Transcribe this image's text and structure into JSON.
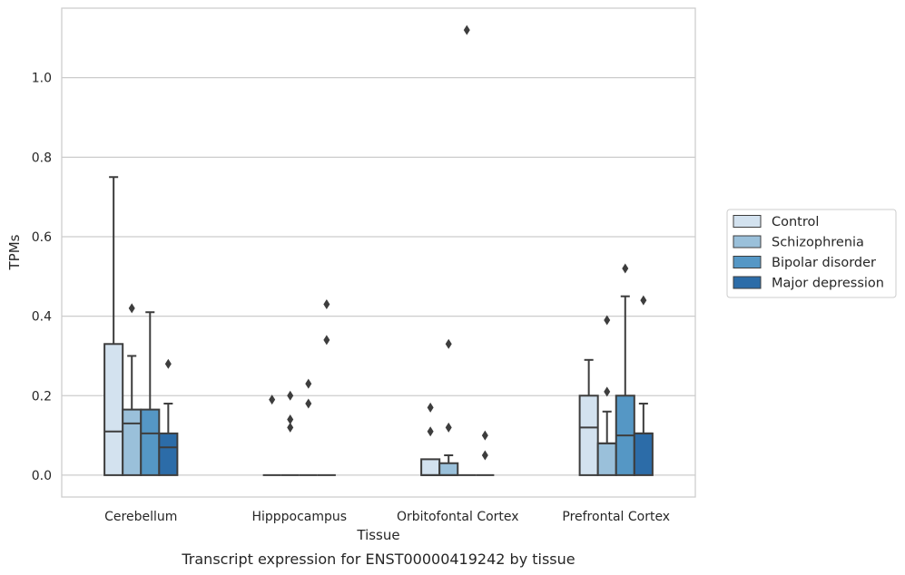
{
  "chart_data": {
    "type": "box",
    "title": "",
    "caption": "Transcript expression for ENST00000419242 by tissue",
    "xlabel": "Tissue",
    "ylabel": "TPMs",
    "ylim": [
      -0.055,
      1.175
    ],
    "yticks": [
      0.0,
      0.2,
      0.4,
      0.6,
      0.8,
      1.0
    ],
    "ytick_labels": [
      "0.0",
      "0.2",
      "0.4",
      "0.6",
      "0.8",
      "1.0"
    ],
    "grid": "horizontal",
    "legend_position": "right",
    "categories": [
      "Cerebellum",
      "Hipppocampus",
      "Orbitofontal Cortex",
      "Prefrontal Cortex"
    ],
    "series": [
      {
        "name": "Control",
        "color": "#d3e2ef",
        "boxes": [
          {
            "min": 0.0,
            "q1": 0.0,
            "median": 0.11,
            "q3": 0.33,
            "max": 0.75,
            "outliers": []
          },
          {
            "min": 0.0,
            "q1": 0.0,
            "median": 0.0,
            "q3": 0.0,
            "max": 0.0,
            "outliers": [
              0.19
            ]
          },
          {
            "min": 0.0,
            "q1": 0.0,
            "median": 0.0,
            "q3": 0.04,
            "max": 0.04,
            "outliers": [
              0.11,
              0.17
            ]
          },
          {
            "min": 0.0,
            "q1": 0.0,
            "median": 0.12,
            "q3": 0.2,
            "max": 0.29,
            "outliers": []
          }
        ]
      },
      {
        "name": "Schizophrenia",
        "color": "#9ac0da",
        "boxes": [
          {
            "min": 0.0,
            "q1": 0.0,
            "median": 0.13,
            "q3": 0.165,
            "max": 0.3,
            "outliers": [
              0.42
            ]
          },
          {
            "min": 0.0,
            "q1": 0.0,
            "median": 0.0,
            "q3": 0.0,
            "max": 0.0,
            "outliers": [
              0.12,
              0.14,
              0.2
            ]
          },
          {
            "min": 0.0,
            "q1": 0.0,
            "median": 0.0,
            "q3": 0.03,
            "max": 0.05,
            "outliers": [
              0.12,
              0.33
            ]
          },
          {
            "min": 0.0,
            "q1": 0.0,
            "median": 0.08,
            "q3": 0.08,
            "max": 0.16,
            "outliers": [
              0.21,
              0.39
            ]
          }
        ]
      },
      {
        "name": "Bipolar disorder",
        "color": "#5597c5",
        "boxes": [
          {
            "min": 0.0,
            "q1": 0.0,
            "median": 0.105,
            "q3": 0.165,
            "max": 0.41,
            "outliers": []
          },
          {
            "min": 0.0,
            "q1": 0.0,
            "median": 0.0,
            "q3": 0.0,
            "max": 0.0,
            "outliers": [
              0.18,
              0.23
            ]
          },
          {
            "min": 0.0,
            "q1": 0.0,
            "median": 0.0,
            "q3": 0.0,
            "max": 0.0,
            "outliers": [
              1.12
            ]
          },
          {
            "min": 0.0,
            "q1": 0.0,
            "median": 0.1,
            "q3": 0.2,
            "max": 0.45,
            "outliers": [
              0.52
            ]
          }
        ]
      },
      {
        "name": "Major depression",
        "color": "#2c6ca8",
        "boxes": [
          {
            "min": 0.0,
            "q1": 0.0,
            "median": 0.07,
            "q3": 0.105,
            "max": 0.18,
            "outliers": [
              0.28
            ]
          },
          {
            "min": 0.0,
            "q1": 0.0,
            "median": 0.0,
            "q3": 0.0,
            "max": 0.0,
            "outliers": [
              0.34,
              0.43
            ]
          },
          {
            "min": 0.0,
            "q1": 0.0,
            "median": 0.0,
            "q3": 0.0,
            "max": 0.0,
            "outliers": [
              0.05,
              0.1
            ]
          },
          {
            "min": 0.0,
            "q1": 0.0,
            "median": 0.105,
            "q3": 0.105,
            "max": 0.18,
            "outliers": [
              0.44
            ]
          }
        ]
      }
    ]
  }
}
